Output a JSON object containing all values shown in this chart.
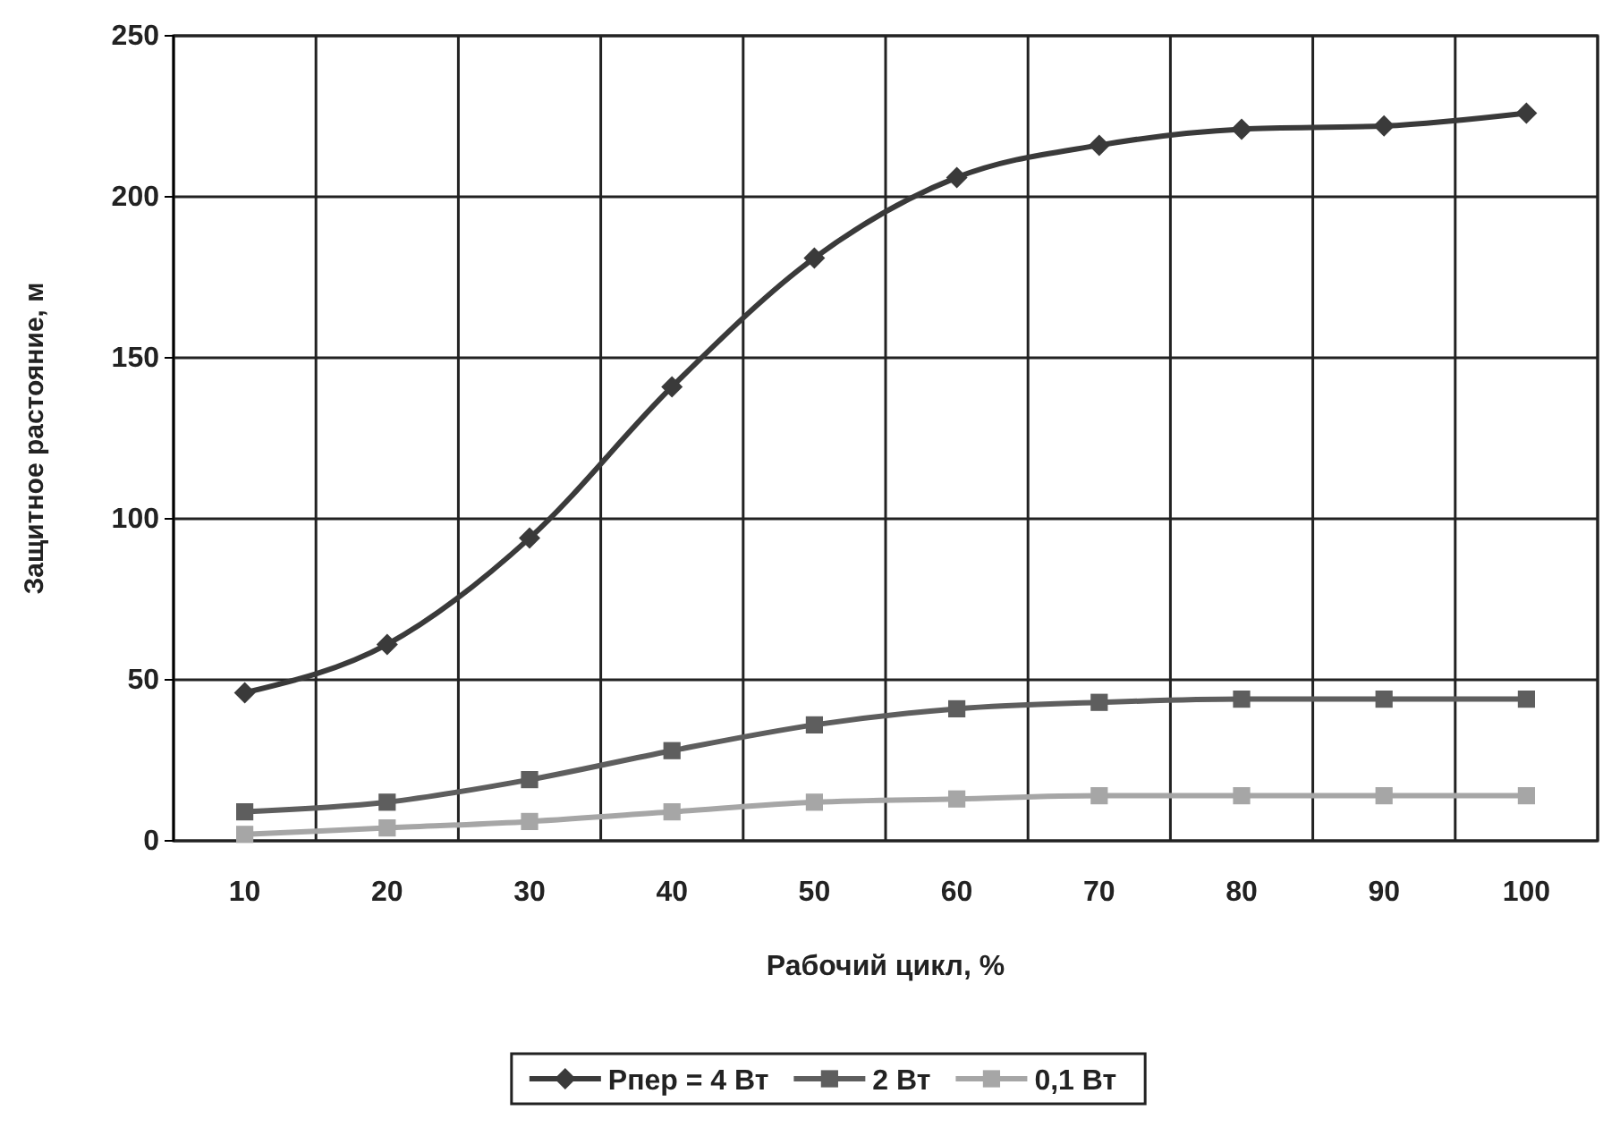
{
  "chart_data": {
    "type": "line",
    "xlabel": "Рабочий цикл, %",
    "ylabel": "Защитное растояние, м",
    "categories": [
      "10",
      "20",
      "30",
      "40",
      "50",
      "60",
      "70",
      "80",
      "90",
      "100"
    ],
    "ylim": [
      0,
      250
    ],
    "yticks": [
      0,
      50,
      100,
      150,
      200,
      250
    ],
    "grid": true,
    "legend": "bottom",
    "line_style": "solid",
    "series": [
      {
        "name": "Рпер = 4 Вт",
        "color": "#3a3a3a",
        "marker": "diamond",
        "values": [
          46,
          61,
          94,
          141,
          181,
          206,
          216,
          221,
          222,
          226
        ]
      },
      {
        "name": "2 Вт",
        "color": "#5e5e5e",
        "marker": "square",
        "values": [
          9,
          12,
          19,
          28,
          36,
          41,
          43,
          44,
          44,
          44
        ]
      },
      {
        "name": "0,1 Вт",
        "color": "#a6a6a6",
        "marker": "square",
        "values": [
          2,
          4,
          6,
          9,
          12,
          13,
          14,
          14,
          14,
          14
        ]
      }
    ]
  }
}
